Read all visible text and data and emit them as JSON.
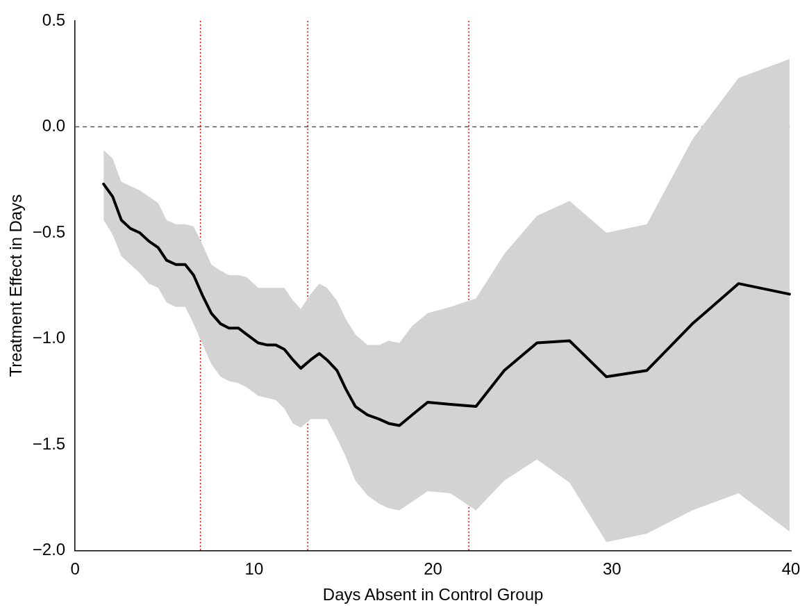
{
  "chart_data": {
    "type": "line",
    "xlabel": "Days Absent in Control Group",
    "ylabel": "Treatment Effect in Days",
    "x": [
      1.59,
      2.1,
      2.58,
      3.09,
      3.61,
      4.12,
      4.64,
      5.11,
      5.63,
      6.15,
      6.62,
      7.14,
      7.61,
      8.13,
      8.6,
      9.12,
      9.59,
      10.23,
      10.74,
      11.22,
      11.69,
      12.17,
      12.61,
      13.16,
      13.64,
      14.07,
      14.63,
      15.14,
      15.66,
      16.33,
      17.0,
      17.52,
      18.12,
      18.83,
      19.7,
      20.97,
      22.4,
      23.98,
      25.81,
      27.63,
      29.69,
      31.95,
      34.49,
      37.07,
      39.92
    ],
    "series": [
      {
        "color": "#000000",
        "values": [
          -0.27,
          -0.33,
          -0.44,
          -0.48,
          -0.5,
          -0.54,
          -0.57,
          -0.63,
          -0.65,
          -0.65,
          -0.7,
          -0.8,
          -0.88,
          -0.93,
          -0.95,
          -0.95,
          -0.98,
          -1.02,
          -1.03,
          -1.03,
          -1.05,
          -1.1,
          -1.14,
          -1.1,
          -1.07,
          -1.1,
          -1.15,
          -1.24,
          -1.32,
          -1.36,
          -1.38,
          -1.4,
          -1.41,
          -1.36,
          -1.3,
          -1.31,
          -1.32,
          -1.15,
          -1.02,
          -1.01,
          -1.18,
          -1.15,
          -0.93,
          -0.74,
          -0.79
        ],
        "upper": [
          -0.11,
          -0.15,
          -0.26,
          -0.28,
          -0.3,
          -0.33,
          -0.36,
          -0.44,
          -0.46,
          -0.46,
          -0.47,
          -0.56,
          -0.65,
          -0.68,
          -0.7,
          -0.7,
          -0.71,
          -0.76,
          -0.76,
          -0.76,
          -0.76,
          -0.82,
          -0.86,
          -0.79,
          -0.74,
          -0.76,
          -0.82,
          -0.91,
          -0.98,
          -1.03,
          -1.03,
          -1.01,
          -1.02,
          -0.94,
          -0.88,
          -0.85,
          -0.81,
          -0.6,
          -0.42,
          -0.35,
          -0.5,
          -0.46,
          -0.06,
          0.23,
          0.32
        ],
        "lower": [
          -0.44,
          -0.51,
          -0.61,
          -0.65,
          -0.69,
          -0.74,
          -0.76,
          -0.83,
          -0.85,
          -0.85,
          -0.93,
          -1.03,
          -1.12,
          -1.18,
          -1.2,
          -1.21,
          -1.23,
          -1.27,
          -1.28,
          -1.29,
          -1.33,
          -1.4,
          -1.42,
          -1.38,
          -1.38,
          -1.38,
          -1.47,
          -1.56,
          -1.67,
          -1.74,
          -1.78,
          -1.8,
          -1.81,
          -1.77,
          -1.72,
          -1.73,
          -1.81,
          -1.67,
          -1.57,
          -1.68,
          -1.96,
          -1.92,
          -1.81,
          -1.73,
          -1.91
        ]
      }
    ],
    "xlim": [
      0,
      40
    ],
    "xticks": [
      0,
      10,
      20,
      30,
      40
    ],
    "ylim": [
      -2,
      0.5
    ],
    "yticks": [
      {
        "value": -2,
        "label": "−2.0"
      },
      {
        "value": -1.5,
        "label": "−1.5"
      },
      {
        "value": -1,
        "label": "−1.0"
      },
      {
        "value": -0.5,
        "label": "−0.5"
      },
      {
        "value": 0,
        "label": "0.0"
      },
      {
        "value": 0.5,
        "label": "0.5"
      }
    ],
    "ref_lines": [
      {
        "axis": "y",
        "value": 0,
        "color": "#555555",
        "line_style": "dashed"
      },
      {
        "axis": "x",
        "value": 7,
        "color": "#ff0000",
        "line_style": "dotted"
      },
      {
        "axis": "x",
        "value": 13,
        "color": "#ff0000",
        "line_style": "dotted"
      },
      {
        "axis": "x",
        "value": 22,
        "color": "#ff0000",
        "line_style": "dotted"
      }
    ],
    "grid": false,
    "legend": false,
    "marker": "none",
    "line_style": "solid"
  }
}
